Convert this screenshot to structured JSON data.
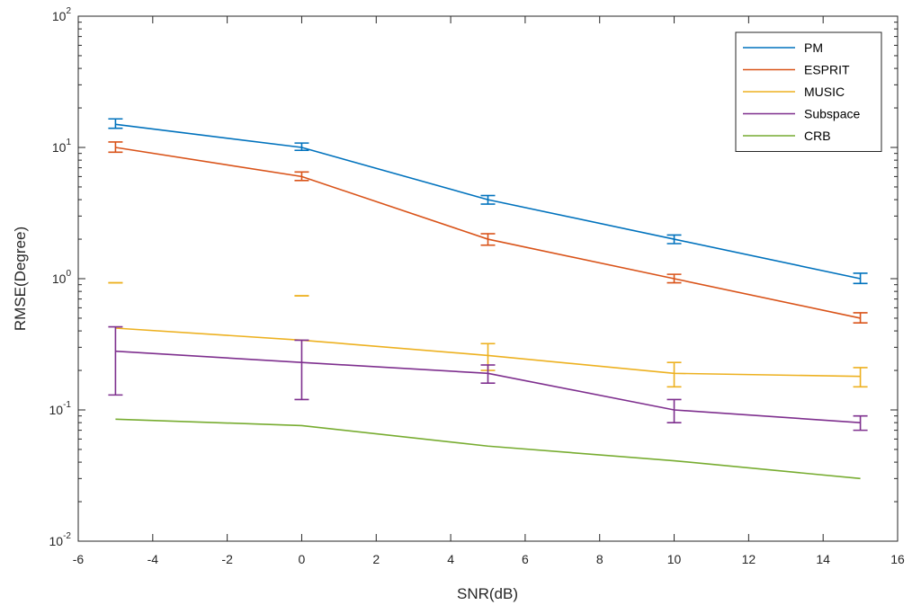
{
  "chart_data": {
    "type": "line",
    "title": "",
    "xlabel": "SNR(dB)",
    "ylabel": "RMSE(Degree)",
    "xlim": [
      -6,
      16
    ],
    "ylim": [
      0.01,
      100
    ],
    "yscale": "log",
    "grid": false,
    "legend_position": "top-right",
    "x_ticks": [
      -6,
      -4,
      -2,
      0,
      2,
      4,
      6,
      8,
      10,
      12,
      14,
      16
    ],
    "x_tick_labels": [
      "-6",
      "-4",
      "-2",
      "0",
      "2",
      "4",
      "6",
      "8",
      "10",
      "12",
      "14",
      "16"
    ],
    "y_ticks": [
      0.01,
      0.1,
      1,
      10,
      100
    ],
    "y_tick_labels": [
      {
        "base": "10",
        "exp": "-2"
      },
      {
        "base": "10",
        "exp": "-1"
      },
      {
        "base": "10",
        "exp": "0"
      },
      {
        "base": "10",
        "exp": "1"
      },
      {
        "base": "10",
        "exp": "2"
      }
    ],
    "x": [
      -5,
      0,
      5,
      10,
      15
    ],
    "series": [
      {
        "name": "PM",
        "color": "#0072BD",
        "values": [
          15,
          10,
          4,
          2,
          1
        ],
        "err_low": [
          14,
          9.5,
          3.7,
          1.85,
          0.92
        ],
        "err_high": [
          16.5,
          10.8,
          4.3,
          2.15,
          1.1
        ]
      },
      {
        "name": "ESPRIT",
        "color": "#D95319",
        "values": [
          10,
          6,
          2,
          1,
          0.5
        ],
        "err_low": [
          9.2,
          5.6,
          1.8,
          0.93,
          0.46
        ],
        "err_high": [
          11,
          6.5,
          2.2,
          1.08,
          0.55
        ]
      },
      {
        "name": "MUSIC",
        "color": "#EDB120",
        "values": [
          0.42,
          0.34,
          0.26,
          0.19,
          0.18
        ],
        "err_low": [
          0.93,
          0.74,
          0.2,
          0.15,
          0.15
        ],
        "err_high": [
          0.93,
          0.74,
          0.32,
          0.23,
          0.21
        ]
      },
      {
        "name": "Subspace",
        "color": "#7E2F8E",
        "values": [
          0.28,
          0.23,
          0.19,
          0.1,
          0.08
        ],
        "err_low": [
          0.13,
          0.12,
          0.16,
          0.08,
          0.07
        ],
        "err_high": [
          0.43,
          0.34,
          0.22,
          0.12,
          0.09
        ]
      },
      {
        "name": "CRB",
        "color": "#77AC30",
        "values": [
          0.085,
          0.076,
          0.053,
          0.041,
          0.03
        ]
      }
    ]
  }
}
